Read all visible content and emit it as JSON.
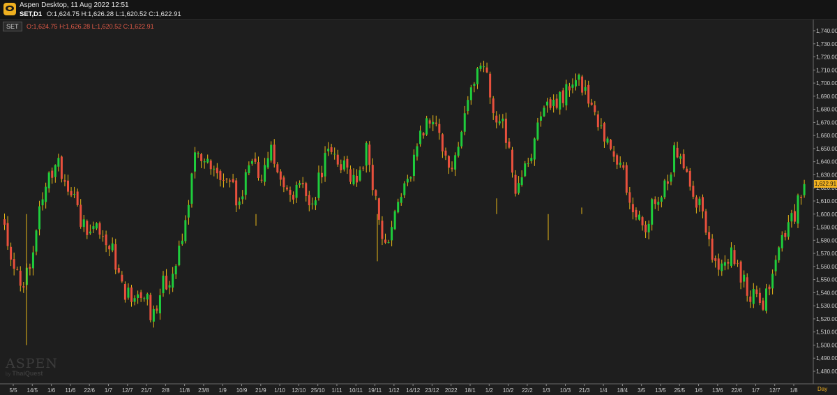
{
  "window": {
    "title": "Aspen Desktop, 11 Aug 2022 12:51",
    "symbol": "SET,D1",
    "ohlc": "O:1,624.75 H:1,626.28 L:1,620.52 C:1,622.91"
  },
  "legend": {
    "badge": "SET",
    "ohlc": "O:1,624.75 H:1,626.28 L:1,620.52 C:1,622.91"
  },
  "watermark": {
    "brand": "ASPEN",
    "by": "by",
    "company": "ThaiQuest"
  },
  "price_axis": {
    "labels": [
      "1,740.00",
      "1,730.00",
      "1,720.00",
      "1,710.00",
      "1,700.00",
      "1,690.00",
      "1,680.00",
      "1,670.00",
      "1,660.00",
      "1,650.00",
      "1,640.00",
      "1,630.00",
      "1,620.00",
      "1,610.00",
      "1,600.00",
      "1,590.00",
      "1,580.00",
      "1,570.00",
      "1,560.00",
      "1,550.00",
      "1,540.00",
      "1,530.00",
      "1,520.00",
      "1,510.00",
      "1,500.00",
      "1,490.00",
      "1,480.00"
    ],
    "current_price": "1,622.91",
    "period": "Day"
  },
  "colors": {
    "up": "#1fcc3c",
    "down": "#e8503d",
    "wick": "#e8b818",
    "tag": "#f0b020"
  },
  "chart_data": {
    "type": "candlestick",
    "x_tick_labels": [
      "5/5",
      "14/5",
      "1/6",
      "11/6",
      "22/6",
      "1/7",
      "12/7",
      "21/7",
      "2/8",
      "11/8",
      "23/8",
      "1/9",
      "10/9",
      "21/9",
      "1/10",
      "12/10",
      "25/10",
      "1/11",
      "10/11",
      "19/11",
      "1/12",
      "14/12",
      "23/12",
      "2022",
      "18/1",
      "1/2",
      "10/2",
      "22/2",
      "1/3",
      "10/3",
      "21/3",
      "1/4",
      "18/4",
      "3/5",
      "13/5",
      "25/5",
      "1/6",
      "13/6",
      "22/6",
      "1/7",
      "12/7",
      "1/8"
    ],
    "ylim": [
      1475,
      1745
    ],
    "last_close": 1622.91,
    "anchors": [
      1592,
      1556,
      1549,
      1592,
      1622,
      1641,
      1620,
      1599,
      1585,
      1592,
      1573,
      1545,
      1531,
      1542,
      1520,
      1549,
      1556,
      1592,
      1649,
      1639,
      1631,
      1620,
      1612,
      1641,
      1627,
      1649,
      1631,
      1614,
      1620,
      1609,
      1641,
      1649,
      1631,
      1627,
      1652,
      1599,
      1574,
      1613,
      1631,
      1661,
      1678,
      1656,
      1631,
      1664,
      1700,
      1711,
      1671,
      1663,
      1613,
      1641,
      1663,
      1683,
      1685,
      1701,
      1703,
      1688,
      1662,
      1643,
      1633,
      1602,
      1585,
      1613,
      1624,
      1652,
      1632,
      1610,
      1578,
      1551,
      1571,
      1554,
      1538,
      1531,
      1547,
      1582,
      1598,
      1622.91
    ]
  }
}
